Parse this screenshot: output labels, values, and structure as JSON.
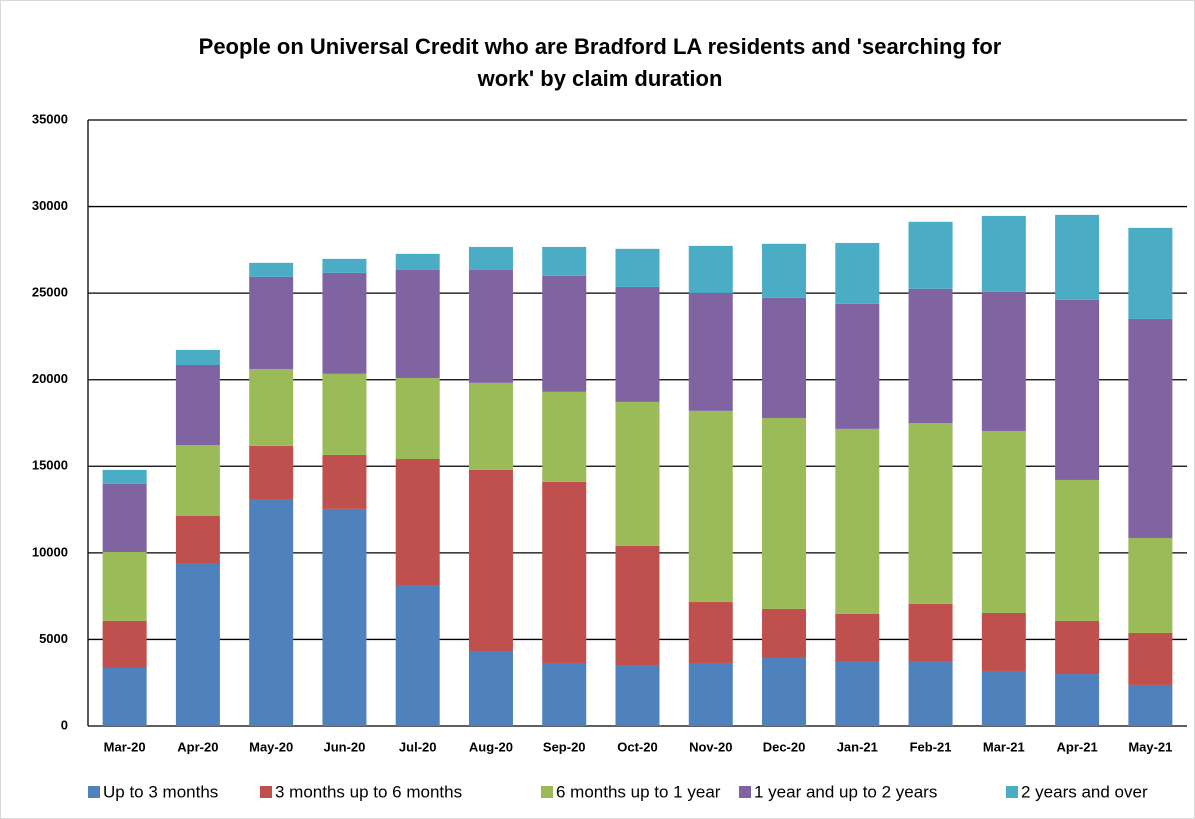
{
  "chart_data": {
    "type": "stacked-bar",
    "title": [
      "People on Universal Credit who are Bradford LA residents and 'searching for",
      "work' by claim duration"
    ],
    "categories": [
      "Mar-20",
      "Apr-20",
      "May-20",
      "Jun-20",
      "Jul-20",
      "Aug-20",
      "Sep-20",
      "Oct-20",
      "Nov-20",
      "Dec-20",
      "Jan-21",
      "Feb-21",
      "Mar-21",
      "Apr-21",
      "May-21"
    ],
    "series": [
      {
        "name": "Up to 3 months",
        "color": "#4f81bd",
        "values": [
          3350,
          9360,
          13110,
          12540,
          8090,
          4330,
          3640,
          3470,
          3640,
          3930,
          3700,
          3700,
          3180,
          3000,
          2370
        ]
      },
      {
        "name": "3 months up to 6 months",
        "color": "#c0504d",
        "values": [
          2720,
          2770,
          3070,
          3120,
          7330,
          10460,
          10460,
          6930,
          3520,
          2830,
          2770,
          3350,
          3350,
          3070,
          3000
        ]
      },
      {
        "name": "6 months up to 1 year",
        "color": "#9bbb59",
        "values": [
          3980,
          4100,
          4440,
          4680,
          4680,
          5030,
          5200,
          8320,
          11040,
          11030,
          10690,
          10450,
          10510,
          8140,
          5490
        ]
      },
      {
        "name": "1 year and up to 2 years",
        "color": "#8064a2",
        "values": [
          3930,
          4620,
          5320,
          5830,
          6240,
          6520,
          6700,
          6640,
          6810,
          6940,
          7220,
          7750,
          8030,
          10400,
          12650
        ]
      },
      {
        "name": "2 years and over",
        "color": "#4bacc6",
        "values": [
          810,
          870,
          810,
          810,
          930,
          1330,
          1670,
          2200,
          2720,
          3120,
          3520,
          3870,
          4390,
          4910,
          5260
        ]
      }
    ],
    "ylim": [
      0,
      35000
    ],
    "yticks": [
      0,
      5000,
      10000,
      15000,
      20000,
      25000,
      30000,
      35000
    ],
    "grid": true
  }
}
